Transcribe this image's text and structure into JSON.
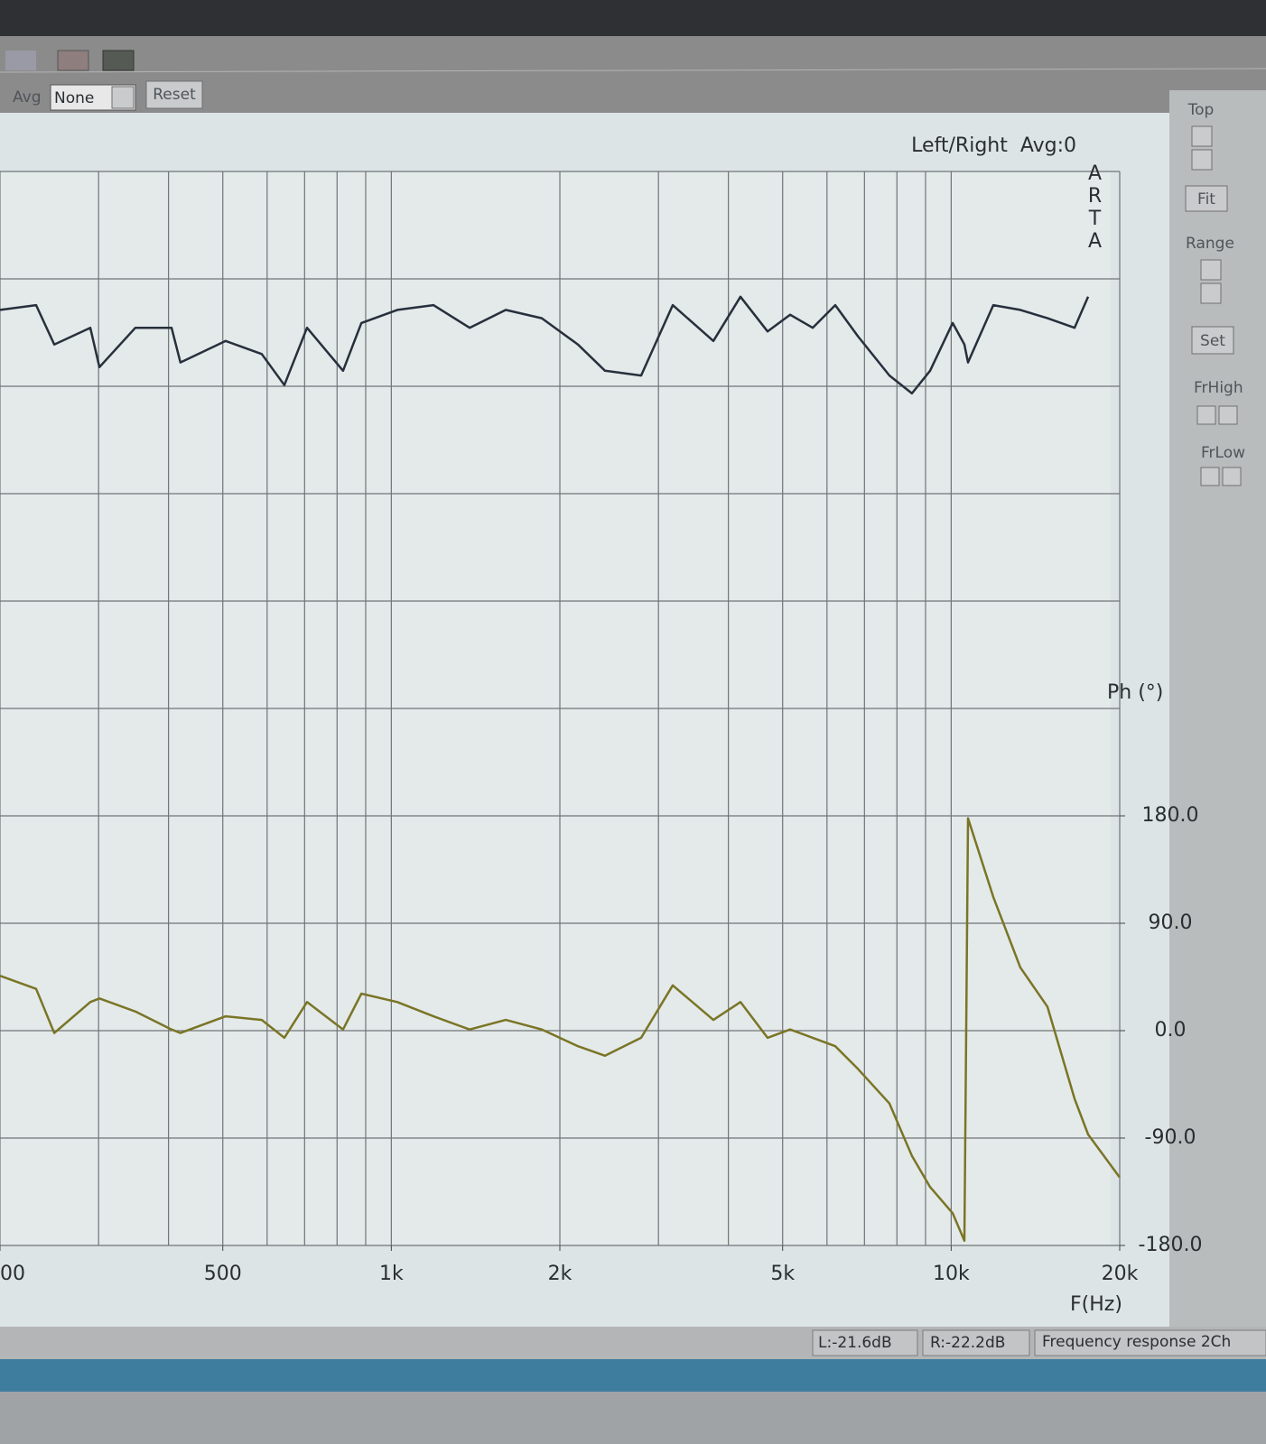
{
  "toolbar": {
    "avg_label": "Avg",
    "avg_select": "None",
    "reset": "Reset"
  },
  "side_panel": {
    "top": "Top",
    "fit": "Fit",
    "range": "Range",
    "set": "Set",
    "frhigh": "FrHigh",
    "frlow": "FrLow"
  },
  "chart_data": {
    "type": "line",
    "header": "Left/Right  Avg:0",
    "logo": "ARTA",
    "y_axis_label": "Ph (°)",
    "x_axis_label": "F(Hz)",
    "x_log": true,
    "grid": true,
    "xlim": [
      200,
      20000
    ],
    "xticks": [
      {
        "value": 200,
        "label": "00"
      },
      500,
      {
        "value": 1000,
        "label": "1k"
      },
      {
        "value": 2000,
        "label": "2k"
      },
      {
        "value": 5000,
        "label": "5k"
      },
      {
        "value": 10000,
        "label": "10k"
      },
      {
        "value": 20000,
        "label": "20k"
      }
    ],
    "xgrid": [
      200,
      300,
      400,
      500,
      600,
      700,
      800,
      900,
      1000,
      2000,
      3000,
      4000,
      5000,
      6000,
      7000,
      8000,
      9000,
      10000,
      20000
    ],
    "ylim": [
      -180,
      720
    ],
    "yticks": [
      {
        "value": 180,
        "label": "180.0"
      },
      {
        "value": 90,
        "label": "90.0"
      },
      {
        "value": 0,
        "label": "0.0"
      },
      {
        "value": -90,
        "label": "-90.0"
      },
      {
        "value": -180,
        "label": "-180.0"
      }
    ],
    "ygrid": [
      -180,
      -90,
      0,
      90,
      180,
      270,
      360,
      450,
      540,
      630,
      720
    ],
    "x": [
      200,
      232,
      250,
      290,
      301,
      349,
      405,
      420,
      506,
      587,
      644,
      707,
      820,
      884,
      1025,
      1189,
      1380,
      1601,
      1857,
      2154,
      2408,
      2794,
      3182,
      3761,
      4203,
      4699,
      5157,
      5658,
      6208,
      6813,
      7758,
      8511,
      9170,
      10060,
      10558,
      10716,
      11890,
      13290,
      14860,
      16610,
      17560,
      20000
    ],
    "series": [
      {
        "color": "#27303c",
        "values": [
          604,
          608,
          575,
          589,
          556,
          589,
          589,
          560,
          578,
          567,
          541,
          589,
          553,
          593,
          604,
          608,
          589,
          604,
          597,
          575,
          553,
          549,
          608,
          578,
          615,
          586,
          600,
          589,
          608,
          582,
          549,
          534,
          553,
          593,
          575,
          560,
          608,
          604,
          597,
          589,
          615,
          null
        ]
      },
      {
        "color": "#7a7526",
        "values": [
          46,
          35,
          -2,
          24,
          27,
          16,
          1,
          -2,
          12,
          9,
          -6,
          24,
          1,
          31,
          24,
          12,
          1,
          9,
          1,
          -13,
          -21,
          -6,
          38,
          9,
          24,
          -6,
          1,
          -6,
          -13,
          -32,
          -61,
          -105,
          -131,
          -153,
          -176,
          178,
          112,
          53,
          20,
          -57,
          -87,
          -123
        ]
      }
    ]
  },
  "status_bar": {
    "left": "L:-21.6dB",
    "right": "R:-22.2dB",
    "mode": "Frequency response 2Ch"
  }
}
